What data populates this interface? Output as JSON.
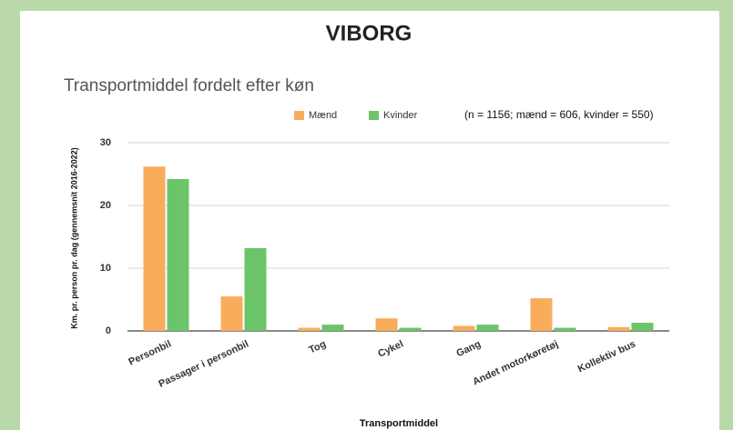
{
  "header": {
    "title": "VIBORG"
  },
  "chart_data": {
    "type": "bar",
    "title": "Transportmiddel fordelt efter køn",
    "annotation": "(n = 1156; mænd = 606, kvinder = 550)",
    "x_label": "Transportmiddel",
    "y_label": "Km. pr. person pr. dag (gennemsnit 2016-2022)",
    "categories": [
      "Personbil",
      "Passager i personbil",
      "Tog",
      "Cykel",
      "Gang",
      "Andet motorkøretøj",
      "Kollektiv bus"
    ],
    "series": [
      {
        "name": "Mænd",
        "color": "#f9ad5b",
        "values": [
          26.2,
          5.5,
          0.5,
          2.0,
          0.8,
          5.2,
          0.6
        ]
      },
      {
        "name": "Kvinder",
        "color": "#6cc46a",
        "values": [
          24.2,
          13.2,
          1.0,
          0.5,
          1.0,
          0.5,
          1.3
        ]
      }
    ],
    "ylim": [
      0,
      30
    ],
    "yticks": [
      0,
      10,
      20,
      30
    ],
    "grid": true,
    "legend": "top"
  }
}
